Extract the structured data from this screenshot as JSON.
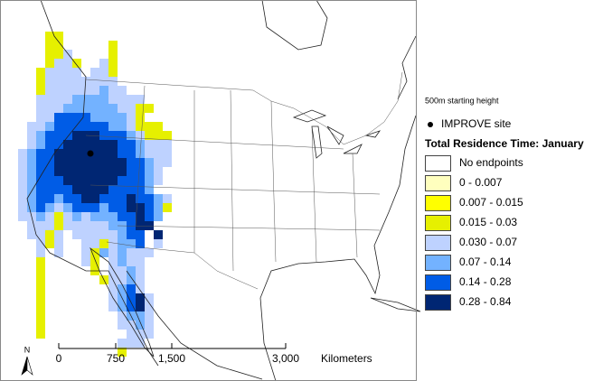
{
  "map": {
    "subtitle": "500m starting height",
    "site_legend": "IMPROVE site",
    "legend": {
      "title": "Total Residence Time: January",
      "items": [
        {
          "label": "No endpoints",
          "color": "#ffffff"
        },
        {
          "label": "0 - 0.007",
          "color": "#ffffbe"
        },
        {
          "label": "0.007 - 0.015",
          "color": "#ffff00"
        },
        {
          "label": "0.015 - 0.03",
          "color": "#e6f000"
        },
        {
          "label": "0.030 - 0.07",
          "color": "#bed2ff"
        },
        {
          "label": "0.07 - 0.14",
          "color": "#73b2ff"
        },
        {
          "label": "0.14 - 0.28",
          "color": "#005ce6"
        },
        {
          "label": "0.28 - 0.84",
          "color": "#002673"
        }
      ]
    },
    "scale": {
      "ticks": [
        "0",
        "750",
        "1,500",
        "3,000"
      ],
      "unit": "Kilometers"
    },
    "north": "N"
  }
}
